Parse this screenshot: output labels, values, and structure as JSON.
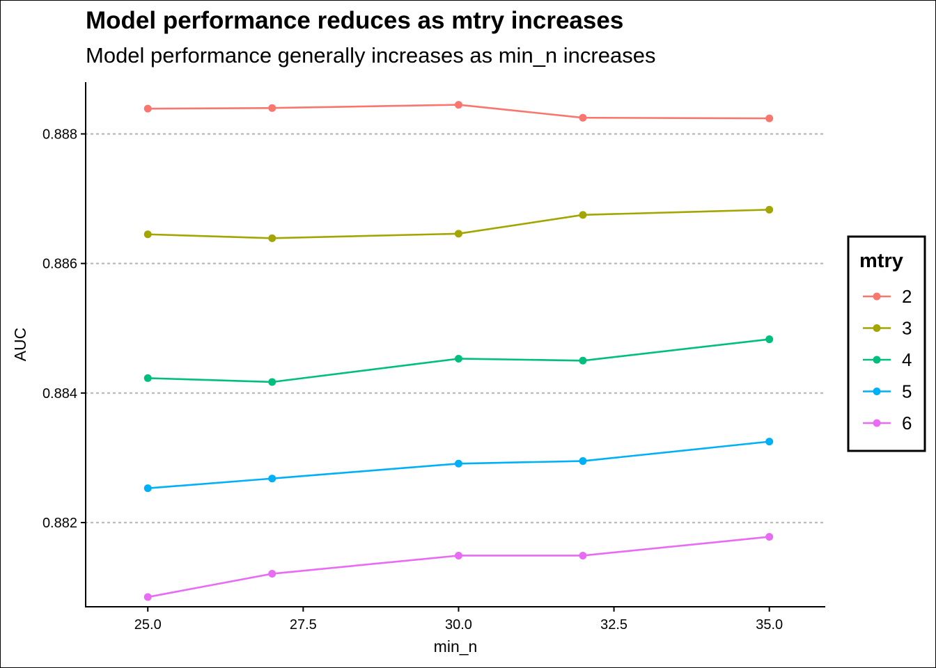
{
  "chart_data": {
    "type": "line",
    "title": "Model performance reduces as mtry increases",
    "subtitle": "Model performance generally increases as min_n increases",
    "xlabel": "min_n",
    "ylabel": "AUC",
    "xlim": [
      24.0,
      35.9
    ],
    "ylim": [
      0.8807,
      0.8888
    ],
    "x_ticks": [
      25.0,
      27.5,
      30.0,
      32.5,
      35.0
    ],
    "x_tick_labels": [
      "25.0",
      "27.5",
      "30.0",
      "32.5",
      "35.0"
    ],
    "y_ticks": [
      0.882,
      0.884,
      0.886,
      0.888
    ],
    "y_tick_labels": [
      "0.882",
      "0.884",
      "0.886",
      "0.888"
    ],
    "grid": "horizontal-dotted",
    "x": [
      25,
      27,
      30,
      32,
      35
    ],
    "legend": {
      "title": "mtry",
      "position": "right"
    },
    "series": [
      {
        "name": "2",
        "color": "#F8766D",
        "values": [
          0.88839,
          0.8884,
          0.88845,
          0.88825,
          0.88824
        ]
      },
      {
        "name": "3",
        "color": "#A3A500",
        "values": [
          0.88645,
          0.88639,
          0.88646,
          0.88675,
          0.88683
        ]
      },
      {
        "name": "4",
        "color": "#00BF7D",
        "values": [
          0.88423,
          0.88417,
          0.88453,
          0.8845,
          0.88483
        ]
      },
      {
        "name": "5",
        "color": "#00B0F6",
        "values": [
          0.88253,
          0.88268,
          0.88291,
          0.88295,
          0.88325
        ]
      },
      {
        "name": "6",
        "color": "#E76BF3",
        "values": [
          0.88085,
          0.88121,
          0.88149,
          0.88149,
          0.88178
        ]
      }
    ]
  }
}
